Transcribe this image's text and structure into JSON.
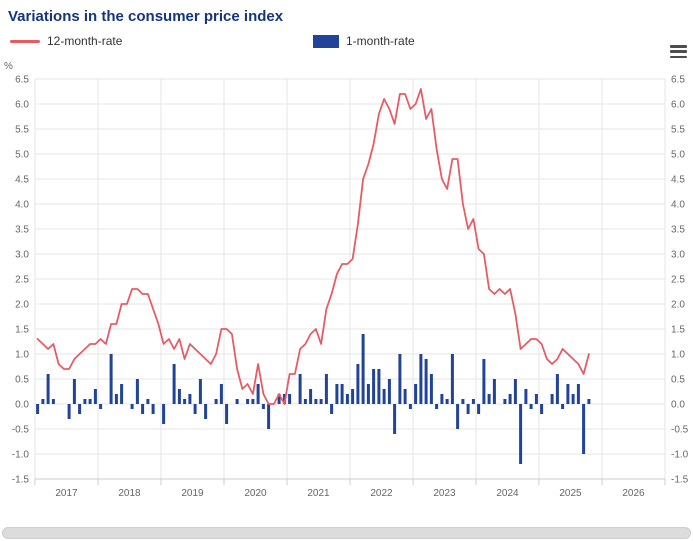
{
  "header": {
    "title": "Variations in the consumer price index"
  },
  "legend": {
    "items": [
      {
        "label": "12-month-rate",
        "type": "line",
        "color": "#e65c65"
      },
      {
        "label": "1-month-rate",
        "type": "bar",
        "color": "#214498"
      }
    ]
  },
  "colors": {
    "title": "#14367d",
    "grid": "#e6e6e6",
    "axis": "#cccccc",
    "tick_text": "#666666"
  },
  "chart_data": {
    "type": "bar",
    "subtype": "line+column",
    "title": "Variations in the consumer price index",
    "ylabel": "%",
    "ylim": [
      -1.5,
      6.5
    ],
    "ytick_step": 0.5,
    "x_years": [
      2017,
      2027
    ],
    "year_labels": [
      "2017",
      "2018",
      "2019",
      "2020",
      "2021",
      "2022",
      "2023",
      "2024",
      "2025",
      "2026"
    ],
    "start_month": "2017-01",
    "grid": true,
    "legend_position": "top",
    "series": [
      {
        "name": "12-month-rate",
        "type": "line",
        "color": "#e65c65",
        "values": [
          1.3,
          1.2,
          1.1,
          1.2,
          0.8,
          0.7,
          0.7,
          0.9,
          1.0,
          1.1,
          1.2,
          1.2,
          1.3,
          1.2,
          1.6,
          1.6,
          2.0,
          2.0,
          2.3,
          2.3,
          2.2,
          2.2,
          1.9,
          1.6,
          1.2,
          1.3,
          1.1,
          1.3,
          0.9,
          1.2,
          1.1,
          1.0,
          0.9,
          0.8,
          1.0,
          1.5,
          1.5,
          1.4,
          0.7,
          0.3,
          0.4,
          0.2,
          0.8,
          0.2,
          0.0,
          0.0,
          0.2,
          0.0,
          0.6,
          0.6,
          1.1,
          1.2,
          1.4,
          1.5,
          1.2,
          1.9,
          2.2,
          2.6,
          2.8,
          2.8,
          2.9,
          3.6,
          4.5,
          4.8,
          5.2,
          5.8,
          6.1,
          5.9,
          5.6,
          6.2,
          6.2,
          5.9,
          6.0,
          6.3,
          5.7,
          5.9,
          5.1,
          4.5,
          4.3,
          4.9,
          4.9,
          4.0,
          3.5,
          3.7,
          3.1,
          3.0,
          2.3,
          2.2,
          2.3,
          2.2,
          2.3,
          1.8,
          1.1,
          1.2,
          1.3,
          1.3,
          1.2,
          0.9,
          0.8,
          0.9,
          1.1,
          1.0,
          0.9,
          0.8,
          0.6,
          1.0
        ]
      },
      {
        "name": "1-month-rate",
        "type": "bar",
        "color": "#214498",
        "values": [
          -0.2,
          0.1,
          0.6,
          0.1,
          0.0,
          0.0,
          -0.3,
          0.5,
          -0.2,
          0.1,
          0.1,
          0.3,
          -0.1,
          0.0,
          1.0,
          0.2,
          0.4,
          0.0,
          -0.1,
          0.5,
          -0.2,
          0.1,
          -0.2,
          0.0,
          -0.4,
          0.0,
          0.8,
          0.3,
          0.1,
          0.2,
          -0.2,
          0.5,
          -0.3,
          0.0,
          0.1,
          0.4,
          -0.4,
          0.0,
          0.1,
          0.0,
          0.1,
          0.1,
          0.4,
          -0.1,
          -0.5,
          0.0,
          0.2,
          0.2,
          0.2,
          0.0,
          0.6,
          0.1,
          0.3,
          0.1,
          0.1,
          0.6,
          -0.2,
          0.4,
          0.4,
          0.2,
          0.3,
          0.8,
          1.4,
          0.4,
          0.7,
          0.7,
          0.3,
          0.5,
          -0.6,
          1.0,
          0.3,
          -0.1,
          0.4,
          1.0,
          0.9,
          0.6,
          -0.1,
          0.2,
          0.1,
          1.0,
          -0.5,
          0.1,
          -0.2,
          0.1,
          -0.2,
          0.9,
          0.2,
          0.5,
          0.0,
          0.1,
          0.2,
          0.5,
          -1.2,
          0.3,
          -0.1,
          0.2,
          -0.2,
          0.0,
          0.2,
          0.6,
          -0.1,
          0.4,
          0.2,
          0.4,
          -1.0,
          0.1
        ]
      }
    ]
  }
}
